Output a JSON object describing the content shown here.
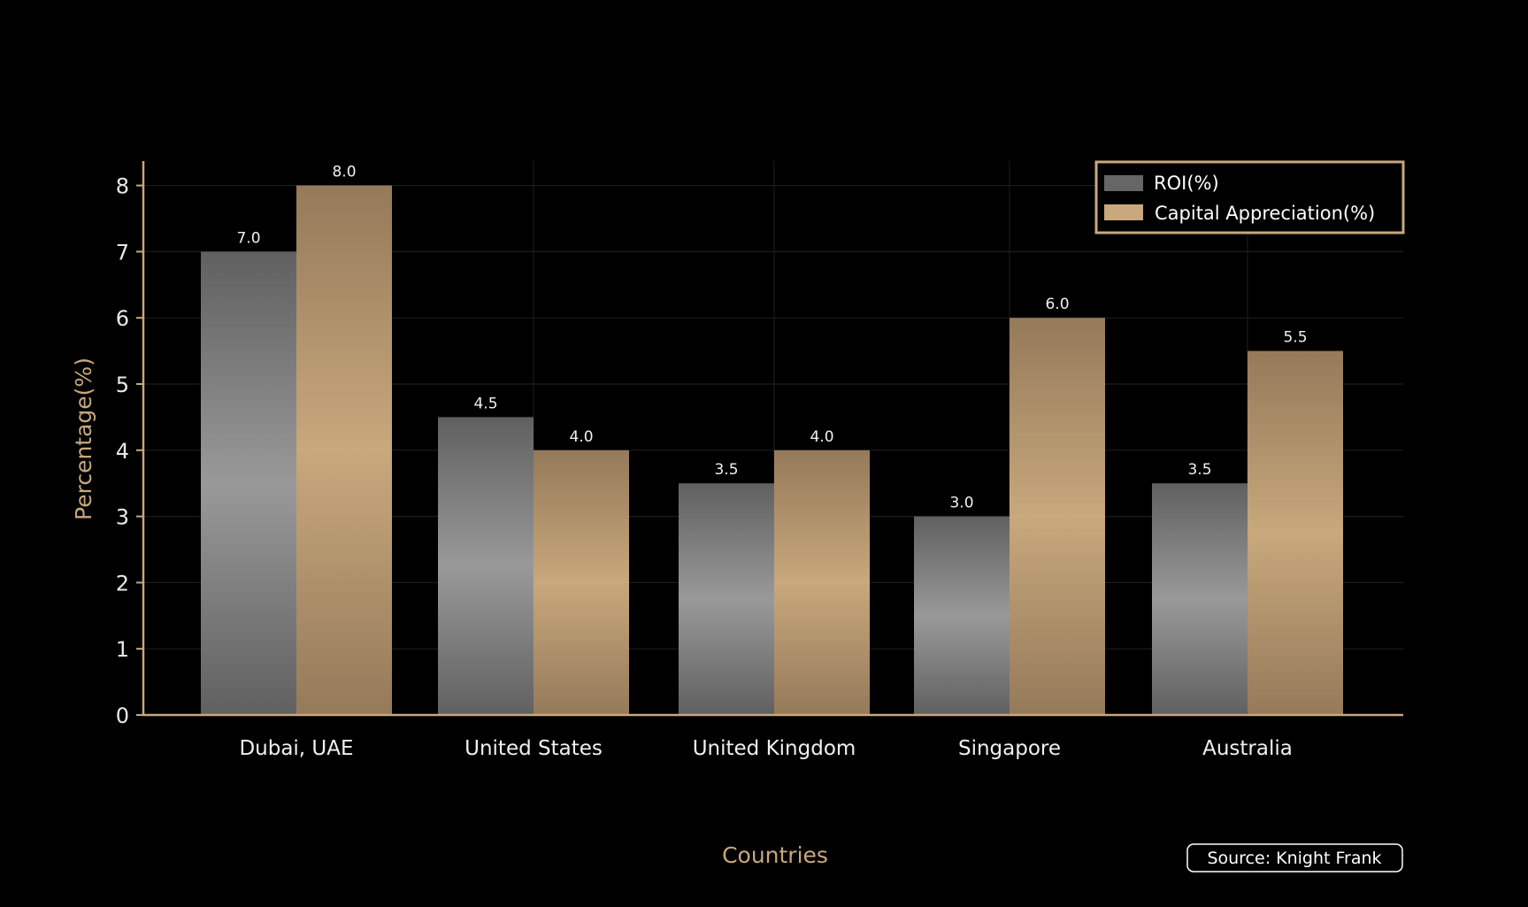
{
  "chart_data": {
    "type": "bar",
    "categories": [
      "Dubai, UAE",
      "United States",
      "United Kingdom",
      "Singapore",
      "Australia"
    ],
    "series": [
      {
        "name": "ROI(%)",
        "values": [
          7.0,
          4.5,
          3.5,
          3.0,
          3.5
        ],
        "color": "#666666"
      },
      {
        "name": "Capital Appreciation(%)",
        "values": [
          8.0,
          4.0,
          4.0,
          6.0,
          5.5
        ],
        "color": "#c8a87c"
      }
    ],
    "value_labels": [
      [
        "7.0",
        "4.5",
        "3.5",
        "3.0",
        "3.5"
      ],
      [
        "8.0",
        "4.0",
        "4.0",
        "6.0",
        "5.5"
      ]
    ],
    "title": "",
    "xlabel": "Countries",
    "ylabel": "Percentage(%)",
    "ylim": [
      0,
      8.4
    ],
    "yticks": [
      "0",
      "1",
      "2",
      "3",
      "4",
      "5",
      "6",
      "7",
      "8"
    ],
    "grid": true,
    "legend_position": "top-right",
    "source": "Source: Knight Frank",
    "axis_color": "#c8a87c"
  }
}
